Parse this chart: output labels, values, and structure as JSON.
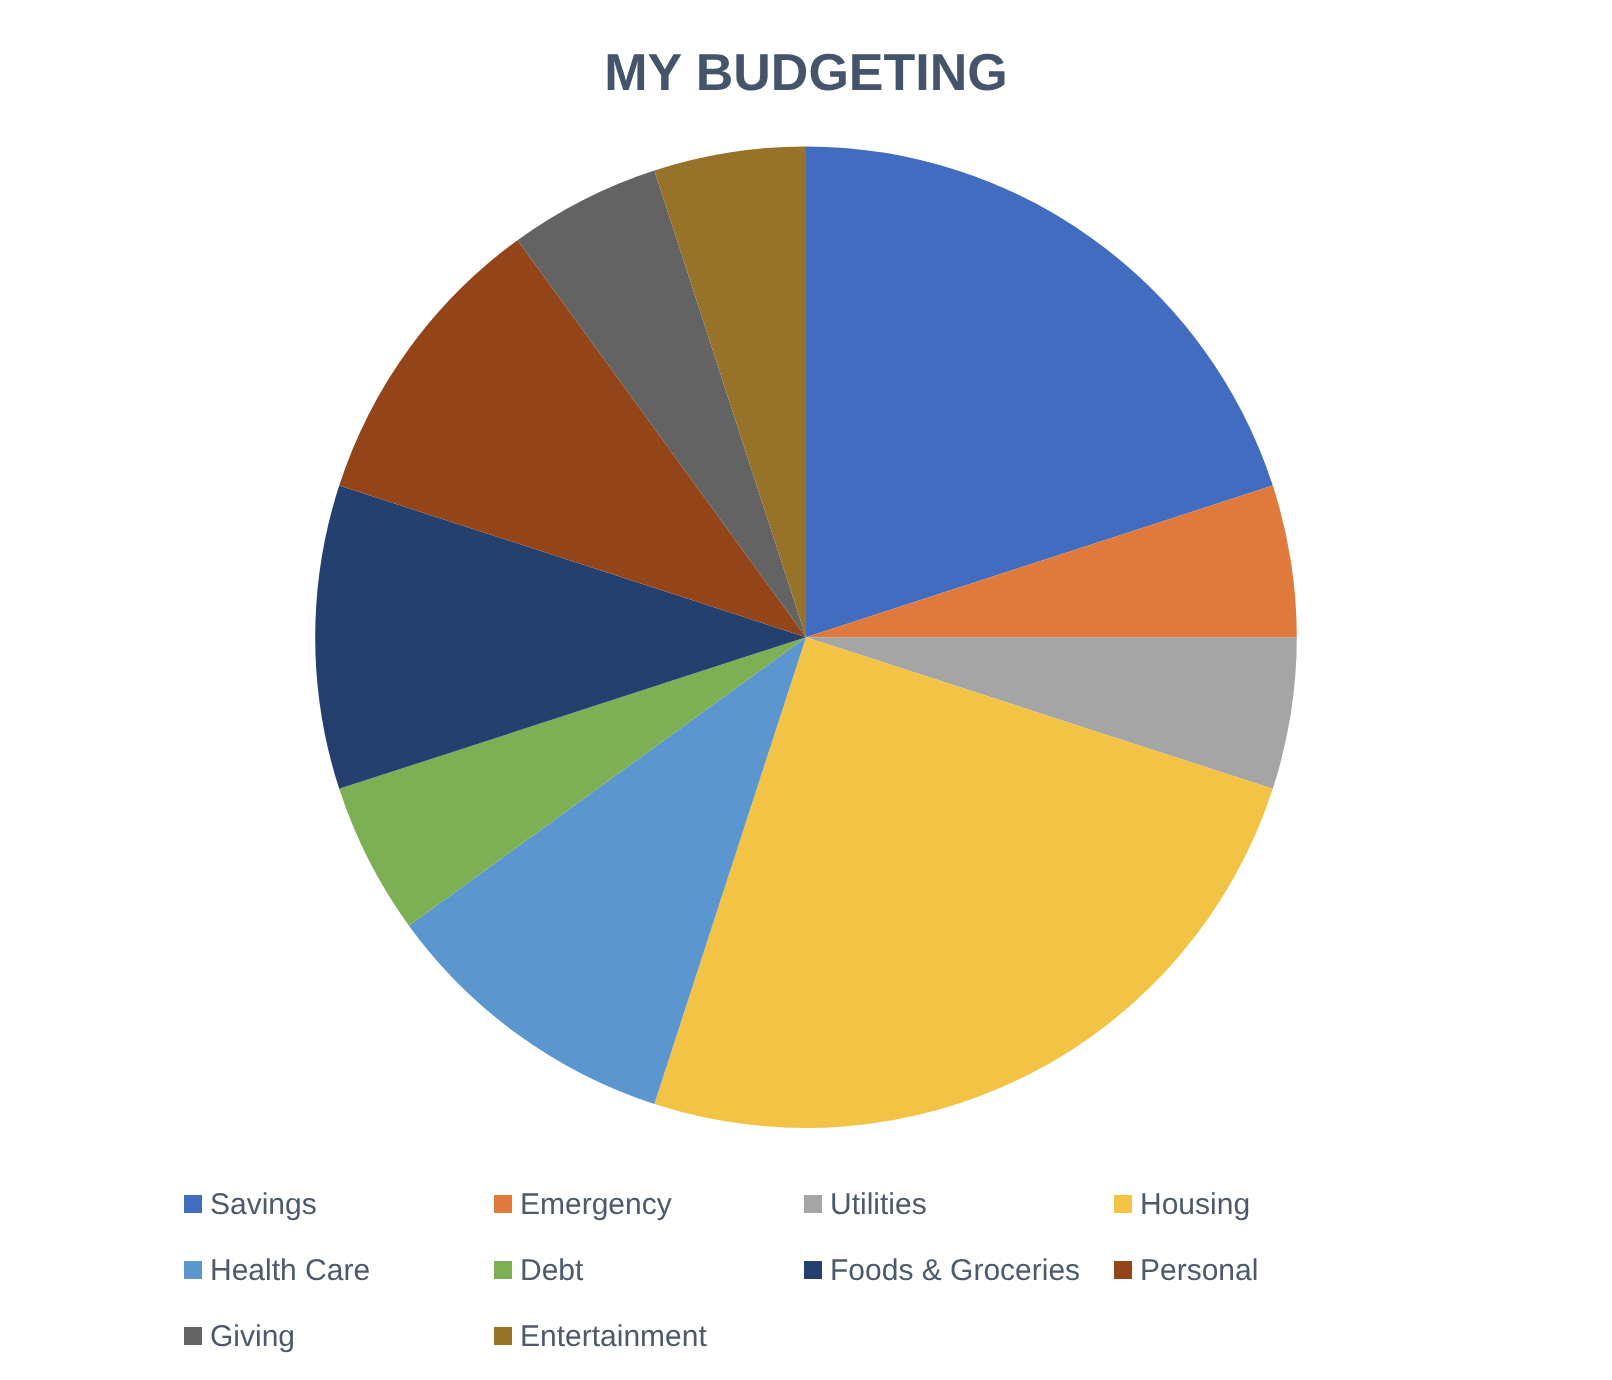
{
  "chart_data": {
    "type": "pie",
    "title": "MY BUDGETING",
    "categories": [
      "Savings",
      "Emergency",
      "Utilities",
      "Housing",
      "Health Care",
      "Debt",
      "Foods & Groceries",
      "Personal",
      "Giving",
      "Entertainment"
    ],
    "values": [
      20,
      5,
      5,
      25,
      10,
      5,
      10,
      10,
      5,
      5
    ],
    "colors": [
      "#416cc0",
      "#e07a3c",
      "#a5a5a5",
      "#f2c344",
      "#5b96cf",
      "#7db055",
      "#23406f",
      "#944419",
      "#636363",
      "#977329"
    ],
    "legend": "bottom"
  }
}
